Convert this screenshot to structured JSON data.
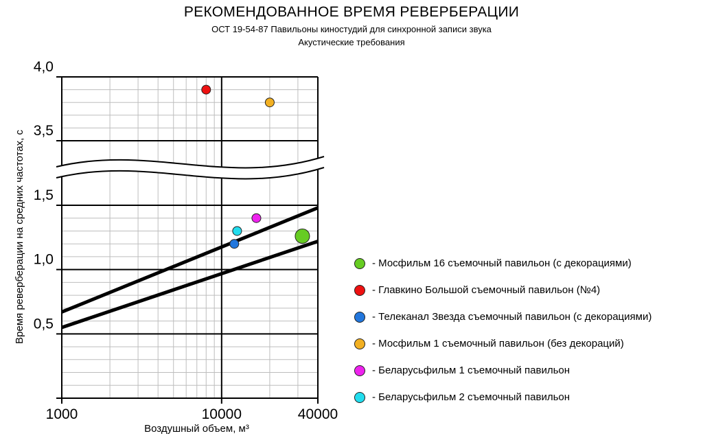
{
  "chart_data": {
    "type": "scatter",
    "title": "РЕКОМЕНДОВАННОЕ ВРЕМЯ РЕВЕРБЕРАЦИИ",
    "subtitle": [
      "ОСТ 19-54-87 Павильоны киностудий для синхронной записи звука",
      "Акустические требования"
    ],
    "xlabel": "Воздушный объем, м³",
    "ylabel": "Время реверберации на средних частотах, с",
    "x_scale": "log",
    "xlim": [
      1000,
      40000
    ],
    "x_ticks": [
      "1000",
      "10000",
      "40000"
    ],
    "y_axis_break": [
      1.5,
      3.5
    ],
    "ylim_lower": [
      0.0,
      1.5
    ],
    "ylim_upper": [
      3.5,
      4.0
    ],
    "y_ticks": [
      "0,5",
      "1,0",
      "1,5",
      "3,5",
      "4,0"
    ],
    "grid": true,
    "legend_position": "right",
    "lines": [
      {
        "x": [
          1000,
          40000
        ],
        "y": [
          0.67,
          1.48
        ]
      },
      {
        "x": [
          1000,
          40000
        ],
        "y": [
          0.55,
          1.22
        ]
      }
    ],
    "series": [
      {
        "name": "- Мосфильм 16 съемочный павильон (с декорациями)",
        "color": "#66cc22",
        "size": "large",
        "x": 32000,
        "y": 1.26
      },
      {
        "name": "- Главкино Большой съемочный павильон (№4)",
        "color": "#ee1111",
        "size": "normal",
        "x": 8000,
        "y": 3.9
      },
      {
        "name": "- Телеканал Звезда съемочный павильон (с декорациями)",
        "color": "#2277dd",
        "size": "normal",
        "x": 12000,
        "y": 1.2
      },
      {
        "name": "- Мосфильм 1 съемочный павильон (без декораций)",
        "color": "#f2b022",
        "size": "normal",
        "x": 20000,
        "y": 3.8
      },
      {
        "name": "- Беларусьфильм 1 съемочный павильон",
        "color": "#ee22ee",
        "size": "normal",
        "x": 16500,
        "y": 1.4
      },
      {
        "name": "- Беларусьфильм 2 съемочный павильон",
        "color": "#22ddee",
        "size": "normal",
        "x": 12500,
        "y": 1.3
      }
    ]
  }
}
